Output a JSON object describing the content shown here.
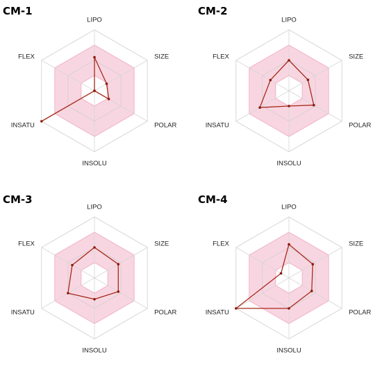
{
  "colors": {
    "grid": "#cfcfcf",
    "spoke": "#d6d6d6",
    "optimal_fill": "#f7cfdc",
    "optimal_stroke": "#f0a7bd",
    "series_line": "#a52a1a",
    "series_point": "#8b1a10"
  },
  "chart_data": [
    {
      "type": "radar",
      "title": "CM-1",
      "axes": [
        "LIPO",
        "SIZE",
        "POLAR",
        "INSOLU",
        "INSATU",
        "FLEX"
      ],
      "rings": 4,
      "optimal_range": [
        0.25,
        0.75
      ],
      "values": [
        0.55,
        0.23,
        0.27,
        0.0,
        1.0,
        0.0
      ]
    },
    {
      "type": "radar",
      "title": "CM-2",
      "axes": [
        "LIPO",
        "SIZE",
        "POLAR",
        "INSOLU",
        "INSATU",
        "FLEX"
      ],
      "rings": 4,
      "optimal_range": [
        0.25,
        0.75
      ],
      "values": [
        0.5,
        0.36,
        0.47,
        0.25,
        0.55,
        0.35
      ]
    },
    {
      "type": "radar",
      "title": "CM-3",
      "axes": [
        "LIPO",
        "SIZE",
        "POLAR",
        "INSOLU",
        "INSATU",
        "FLEX"
      ],
      "rings": 4,
      "optimal_range": [
        0.25,
        0.75
      ],
      "values": [
        0.5,
        0.45,
        0.45,
        0.35,
        0.5,
        0.42
      ]
    },
    {
      "type": "radar",
      "title": "CM-4",
      "axes": [
        "LIPO",
        "SIZE",
        "POLAR",
        "INSOLU",
        "INSATU",
        "FLEX"
      ],
      "rings": 4,
      "optimal_range": [
        0.25,
        0.75
      ],
      "values": [
        0.55,
        0.45,
        0.43,
        0.5,
        1.0,
        0.15
      ]
    }
  ]
}
